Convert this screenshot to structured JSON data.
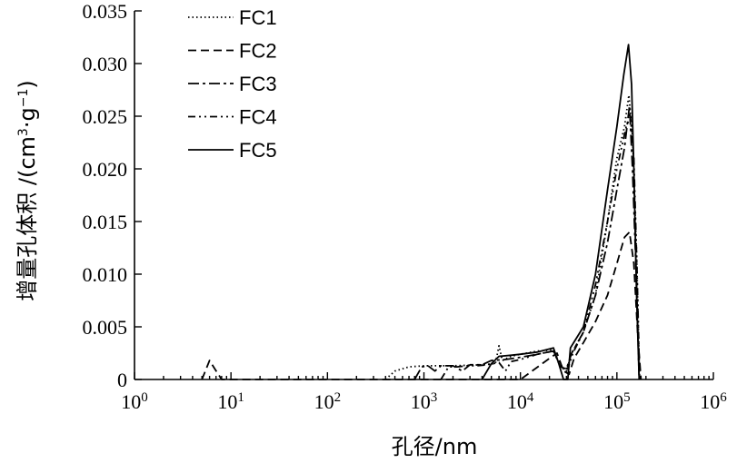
{
  "chart_data": {
    "type": "line",
    "title": "",
    "xlabel": "孔径/nm",
    "ylabel": "增量孔体积 /(cm³·g⁻¹)",
    "ylabel_parts": {
      "prefix": "增量孔体积 /(cm",
      "sup1": "3",
      "mid": "·g",
      "sup2": "−1",
      "suffix": ")"
    },
    "xscale": "log",
    "xlim": [
      1,
      1000000
    ],
    "ylim": [
      0,
      0.035
    ],
    "xticks": [
      {
        "value": 1,
        "base": "10",
        "exp": "0"
      },
      {
        "value": 10,
        "base": "10",
        "exp": "1"
      },
      {
        "value": 100,
        "base": "10",
        "exp": "2"
      },
      {
        "value": 1000,
        "base": "10",
        "exp": "3"
      },
      {
        "value": 10000,
        "base": "10",
        "exp": "4"
      },
      {
        "value": 100000,
        "base": "10",
        "exp": "5"
      },
      {
        "value": 1000000,
        "base": "10",
        "exp": "6"
      }
    ],
    "yticks": [
      {
        "value": 0,
        "label": "0"
      },
      {
        "value": 0.005,
        "label": "0.005"
      },
      {
        "value": 0.01,
        "label": "0.010"
      },
      {
        "value": 0.015,
        "label": "0.015"
      },
      {
        "value": 0.02,
        "label": "0.020"
      },
      {
        "value": 0.025,
        "label": "0.025"
      },
      {
        "value": 0.03,
        "label": "0.030"
      },
      {
        "value": 0.035,
        "label": "0.035"
      }
    ],
    "grid": false,
    "legend": "top-left",
    "series": [
      {
        "name": "FC1",
        "dash": "dotted",
        "points": [
          [
            400,
            0
          ],
          [
            500,
            0.0008
          ],
          [
            700,
            0.0012
          ],
          [
            1000,
            0.0013
          ],
          [
            2000,
            0.0013
          ],
          [
            4000,
            0.0014
          ],
          [
            5500,
            0.0015
          ],
          [
            6000,
            0.0032
          ],
          [
            6500,
            0.0018
          ],
          [
            8000,
            0.0022
          ],
          [
            10000,
            0.0024
          ],
          [
            15000,
            0.0027
          ],
          [
            22000,
            0.0028
          ],
          [
            26000,
            0.0012
          ],
          [
            30000,
            0.0008
          ],
          [
            34000,
            0.0025
          ],
          [
            45000,
            0.0045
          ],
          [
            60000,
            0.008
          ],
          [
            80000,
            0.015
          ],
          [
            100000,
            0.021
          ],
          [
            120000,
            0.024
          ],
          [
            133000,
            0.027
          ],
          [
            145000,
            0.023
          ],
          [
            160000,
            0.012
          ],
          [
            172000,
            0
          ]
        ]
      },
      {
        "name": "FC2",
        "dash": "dashed",
        "points": [
          [
            5,
            0
          ],
          [
            6,
            0.0018
          ],
          [
            6.8,
            0.001
          ],
          [
            8,
            0
          ],
          [
            10,
            0
          ],
          [
            15,
            0
          ],
          [
            1000,
            0
          ],
          [
            10000,
            0
          ],
          [
            20000,
            0.002
          ],
          [
            24000,
            0.0025
          ],
          [
            28000,
            0.0008
          ],
          [
            32000,
            0.0005
          ],
          [
            36000,
            0.002
          ],
          [
            45000,
            0.0035
          ],
          [
            60000,
            0.0055
          ],
          [
            80000,
            0.008
          ],
          [
            100000,
            0.011
          ],
          [
            120000,
            0.0135
          ],
          [
            135000,
            0.014
          ],
          [
            150000,
            0.011
          ],
          [
            165000,
            0.004
          ],
          [
            178000,
            0
          ]
        ]
      },
      {
        "name": "FC3",
        "dash": "dashdot",
        "points": [
          [
            800,
            0
          ],
          [
            950,
            0.0012
          ],
          [
            1100,
            0.0013
          ],
          [
            1300,
            0.0008
          ],
          [
            1500,
            0.0013
          ],
          [
            2000,
            0.0013
          ],
          [
            2500,
            0.0008
          ],
          [
            3000,
            0.0014
          ],
          [
            4000,
            0.0014
          ],
          [
            5000,
            0.0018
          ],
          [
            7000,
            0.0019
          ],
          [
            10000,
            0.0021
          ],
          [
            15000,
            0.0024
          ],
          [
            22000,
            0.0027
          ],
          [
            26000,
            0.0012
          ],
          [
            30000,
            0.001
          ],
          [
            34000,
            0.0025
          ],
          [
            45000,
            0.0045
          ],
          [
            60000,
            0.008
          ],
          [
            80000,
            0.013
          ],
          [
            100000,
            0.018
          ],
          [
            120000,
            0.022
          ],
          [
            135000,
            0.026
          ],
          [
            145000,
            0.02
          ],
          [
            160000,
            0.009
          ],
          [
            170000,
            0
          ]
        ]
      },
      {
        "name": "FC4",
        "dash": "dashdotdot",
        "points": [
          [
            1500,
            0
          ],
          [
            1800,
            0.0012
          ],
          [
            2200,
            0.0012
          ],
          [
            2800,
            0.0013
          ],
          [
            3500,
            0.0013
          ],
          [
            4500,
            0.0014
          ],
          [
            6000,
            0.0016
          ],
          [
            7000,
            0.0008
          ],
          [
            8000,
            0.0017
          ],
          [
            10000,
            0.0019
          ],
          [
            15000,
            0.0024
          ],
          [
            22000,
            0.0027
          ],
          [
            27000,
            0.0012
          ],
          [
            31000,
            0.001
          ],
          [
            35000,
            0.0025
          ],
          [
            45000,
            0.0045
          ],
          [
            60000,
            0.009
          ],
          [
            80000,
            0.015
          ],
          [
            100000,
            0.02
          ],
          [
            125000,
            0.024
          ],
          [
            138000,
            0.025
          ],
          [
            150000,
            0.021
          ],
          [
            162000,
            0.01
          ],
          [
            172000,
            0
          ]
        ]
      },
      {
        "name": "FC5",
        "dash": "solid",
        "points": [
          [
            4000,
            0
          ],
          [
            5000,
            0.0015
          ],
          [
            6000,
            0.0022
          ],
          [
            8000,
            0.0023
          ],
          [
            10000,
            0.0024
          ],
          [
            15000,
            0.0026
          ],
          [
            22000,
            0.003
          ],
          [
            25000,
            0.0015
          ],
          [
            28000,
            0
          ],
          [
            31000,
            0
          ],
          [
            33000,
            0.003
          ],
          [
            45000,
            0.005
          ],
          [
            60000,
            0.01
          ],
          [
            80000,
            0.018
          ],
          [
            100000,
            0.024
          ],
          [
            118000,
            0.029
          ],
          [
            132000,
            0.0318
          ],
          [
            142000,
            0.028
          ],
          [
            150000,
            0.02
          ],
          [
            160000,
            0.008
          ],
          [
            170000,
            0
          ]
        ]
      }
    ]
  }
}
